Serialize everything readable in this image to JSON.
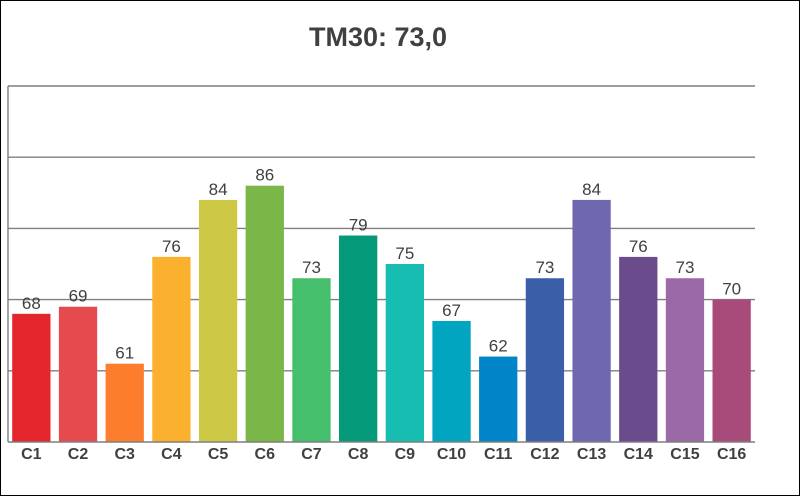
{
  "chart_data": {
    "type": "bar",
    "title": "TM30: 73,0",
    "xlabel": "",
    "ylabel": "",
    "ylim": [
      50,
      100
    ],
    "grid": true,
    "categories": [
      "C1",
      "C2",
      "C3",
      "C4",
      "C5",
      "C6",
      "C7",
      "C8",
      "C9",
      "C10",
      "C11",
      "C12",
      "C13",
      "C14",
      "C15",
      "C16"
    ],
    "values": [
      68,
      69,
      61,
      76,
      84,
      86,
      73,
      79,
      75,
      67,
      62,
      73,
      84,
      76,
      73,
      70
    ],
    "colors": [
      "#e4252c",
      "#e54a4e",
      "#fc7d2c",
      "#fbb12e",
      "#cdc845",
      "#7ab648",
      "#45bf6b",
      "#049a79",
      "#18bdb1",
      "#02a5c0",
      "#0284c9",
      "#3b5ea9",
      "#6f67b0",
      "#6a4b8b",
      "#9b69a5",
      "#a84b7a"
    ]
  }
}
